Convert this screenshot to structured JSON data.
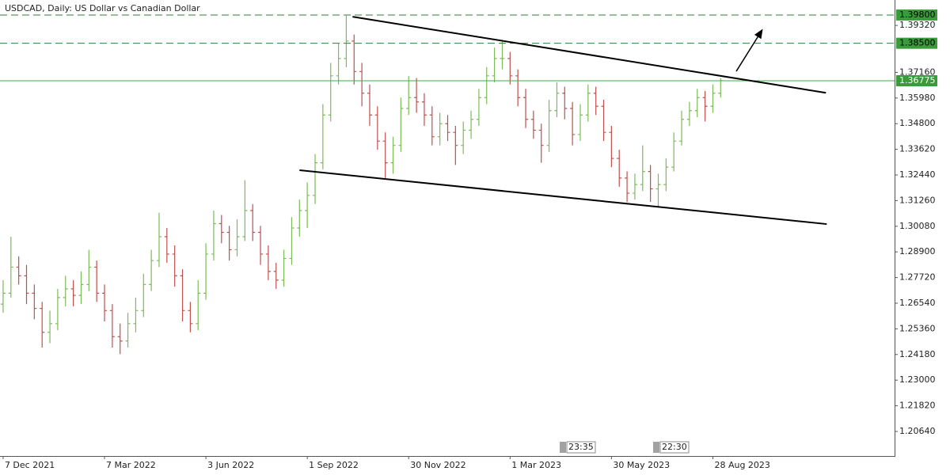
{
  "chart_data": {
    "type": "ohlc",
    "title": "USDCAD, Daily:  US Dollar vs Canadian Dollar",
    "up_color": "#7cbc58",
    "down_color": "#c0504d",
    "xlim": [
      -0.4,
      114.3
    ],
    "ylim": [
      1.1951,
      1.4049
    ],
    "xticks": [
      {
        "value": 0,
        "label": "7 Dec 2021"
      },
      {
        "value": 13,
        "label": "7 Mar 2022"
      },
      {
        "value": 26,
        "label": "3 Jun 2022"
      },
      {
        "value": 39,
        "label": "1 Sep 2022"
      },
      {
        "value": 52,
        "label": "30 Nov 2022"
      },
      {
        "value": 65,
        "label": "1 Mar 2023"
      },
      {
        "value": 78,
        "label": "30 May 2023"
      },
      {
        "value": 91,
        "label": "28 Aug 2023"
      }
    ],
    "yticks": [
      {
        "value": 1.3932,
        "label": "1.39320"
      },
      {
        "value": 1.3716,
        "label": "1.37160"
      },
      {
        "value": 1.3598,
        "label": "1.35980"
      },
      {
        "value": 1.348,
        "label": "1.34800"
      },
      {
        "value": 1.3362,
        "label": "1.33620"
      },
      {
        "value": 1.3244,
        "label": "1.32440"
      },
      {
        "value": 1.3126,
        "label": "1.31260"
      },
      {
        "value": 1.3008,
        "label": "1.30080"
      },
      {
        "value": 1.289,
        "label": "1.28900"
      },
      {
        "value": 1.2772,
        "label": "1.27720"
      },
      {
        "value": 1.2654,
        "label": "1.26540"
      },
      {
        "value": 1.2536,
        "label": "1.25360"
      },
      {
        "value": 1.2418,
        "label": "1.24180"
      },
      {
        "value": 1.23,
        "label": "1.23000"
      },
      {
        "value": 1.2182,
        "label": "1.21820"
      },
      {
        "value": 1.2064,
        "label": "1.20640"
      }
    ],
    "levels": [
      {
        "value": 1.398,
        "label": "1.39800",
        "style": "dashed",
        "color": "#2e7d32"
      },
      {
        "value": 1.385,
        "label": "1.38500",
        "style": "dashed",
        "color": "#2e7d32"
      },
      {
        "value": 1.36775,
        "label": "1.36775",
        "style": "solid",
        "color": "#3fae49"
      }
    ],
    "trendlines": [
      {
        "x": [
          44.8,
          105.5
        ],
        "y": [
          1.3972,
          1.3622
        ]
      },
      {
        "x": [
          38.0,
          105.6
        ],
        "y": [
          1.3266,
          1.3018
        ]
      }
    ],
    "arrow": {
      "x": [
        94.0,
        97.3
      ],
      "y": [
        1.3721,
        1.391
      ]
    },
    "time_markers": [
      "23:35",
      "22:30"
    ],
    "open": [
      1.265,
      1.27,
      1.282,
      1.278,
      1.27,
      1.263,
      1.252,
      1.256,
      1.268,
      1.272,
      1.269,
      1.274,
      1.282,
      1.27,
      1.262,
      1.25,
      1.248,
      1.256,
      1.262,
      1.274,
      1.285,
      1.296,
      1.288,
      1.278,
      1.262,
      1.256,
      1.27,
      1.288,
      1.302,
      1.298,
      1.29,
      1.296,
      1.308,
      1.298,
      1.288,
      1.28,
      1.276,
      1.286,
      1.3,
      1.308,
      1.315,
      1.33,
      1.352,
      1.37,
      1.378,
      1.386,
      1.372,
      1.362,
      1.352,
      1.34,
      1.33,
      1.338,
      1.355,
      1.36,
      1.358,
      1.352,
      1.342,
      1.348,
      1.344,
      1.338,
      1.345,
      1.35,
      1.36,
      1.37,
      1.378,
      1.378,
      1.37,
      1.36,
      1.35,
      1.345,
      1.338,
      1.354,
      1.362,
      1.355,
      1.343,
      1.352,
      1.362,
      1.356,
      1.344,
      1.332,
      1.323,
      1.316,
      1.32,
      1.326,
      1.318,
      1.32,
      1.328,
      1.34,
      1.35,
      1.354,
      1.36,
      1.356,
      1.362
    ],
    "high": [
      1.276,
      1.296,
      1.287,
      1.283,
      1.274,
      1.266,
      1.262,
      1.272,
      1.278,
      1.276,
      1.28,
      1.29,
      1.285,
      1.274,
      1.265,
      1.256,
      1.261,
      1.268,
      1.279,
      1.29,
      1.307,
      1.3,
      1.292,
      1.281,
      1.266,
      1.276,
      1.293,
      1.308,
      1.306,
      1.301,
      1.304,
      1.322,
      1.311,
      1.301,
      1.292,
      1.284,
      1.29,
      1.305,
      1.313,
      1.321,
      1.334,
      1.357,
      1.376,
      1.385,
      1.3977,
      1.389,
      1.376,
      1.366,
      1.356,
      1.344,
      1.342,
      1.36,
      1.37,
      1.369,
      1.362,
      1.356,
      1.353,
      1.352,
      1.347,
      1.349,
      1.354,
      1.364,
      1.374,
      1.383,
      1.386,
      1.381,
      1.373,
      1.364,
      1.354,
      1.348,
      1.359,
      1.367,
      1.365,
      1.358,
      1.357,
      1.366,
      1.365,
      1.359,
      1.347,
      1.336,
      1.326,
      1.325,
      1.338,
      1.329,
      1.325,
      1.332,
      1.344,
      1.354,
      1.358,
      1.364,
      1.363,
      1.366,
      1.369
    ],
    "low": [
      1.261,
      1.268,
      1.274,
      1.265,
      1.258,
      1.245,
      1.247,
      1.253,
      1.264,
      1.264,
      1.265,
      1.271,
      1.266,
      1.257,
      1.245,
      1.242,
      1.245,
      1.252,
      1.259,
      1.271,
      1.282,
      1.284,
      1.273,
      1.257,
      1.252,
      1.253,
      1.267,
      1.285,
      1.293,
      1.285,
      1.287,
      1.294,
      1.294,
      1.283,
      1.276,
      1.272,
      1.273,
      1.283,
      1.296,
      1.3,
      1.311,
      1.327,
      1.349,
      1.366,
      1.374,
      1.366,
      1.356,
      1.347,
      1.336,
      1.323,
      1.325,
      1.335,
      1.352,
      1.353,
      1.347,
      1.338,
      1.338,
      1.34,
      1.329,
      1.334,
      1.341,
      1.347,
      1.357,
      1.367,
      1.373,
      1.366,
      1.356,
      1.346,
      1.341,
      1.33,
      1.335,
      1.351,
      1.35,
      1.338,
      1.34,
      1.349,
      1.352,
      1.34,
      1.328,
      1.319,
      1.312,
      1.313,
      1.317,
      1.312,
      1.31,
      1.317,
      1.326,
      1.338,
      1.347,
      1.351,
      1.349,
      1.353,
      1.36
    ],
    "close": [
      1.27,
      1.282,
      1.278,
      1.27,
      1.263,
      1.252,
      1.256,
      1.268,
      1.272,
      1.269,
      1.274,
      1.282,
      1.27,
      1.262,
      1.25,
      1.248,
      1.256,
      1.262,
      1.274,
      1.285,
      1.296,
      1.288,
      1.278,
      1.262,
      1.256,
      1.27,
      1.288,
      1.302,
      1.298,
      1.29,
      1.296,
      1.308,
      1.298,
      1.288,
      1.28,
      1.276,
      1.286,
      1.3,
      1.308,
      1.315,
      1.33,
      1.352,
      1.37,
      1.378,
      1.386,
      1.372,
      1.362,
      1.352,
      1.34,
      1.33,
      1.338,
      1.355,
      1.36,
      1.358,
      1.352,
      1.342,
      1.348,
      1.344,
      1.338,
      1.345,
      1.35,
      1.36,
      1.37,
      1.378,
      1.378,
      1.37,
      1.36,
      1.35,
      1.345,
      1.338,
      1.354,
      1.362,
      1.355,
      1.343,
      1.352,
      1.362,
      1.356,
      1.344,
      1.332,
      1.323,
      1.316,
      1.32,
      1.326,
      1.318,
      1.32,
      1.328,
      1.34,
      1.35,
      1.354,
      1.36,
      1.356,
      1.362,
      1.3678
    ]
  }
}
